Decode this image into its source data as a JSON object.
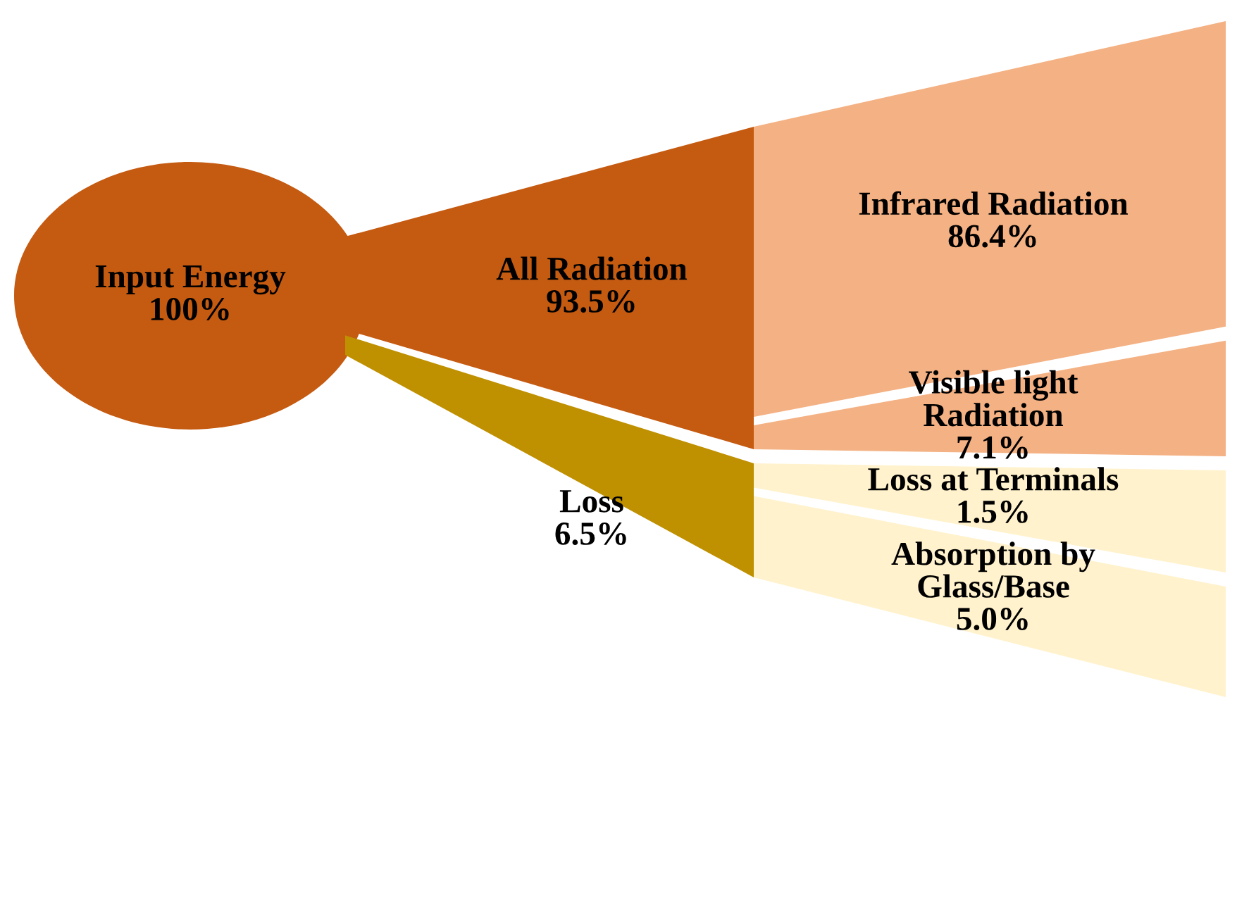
{
  "chart_data": {
    "type": "other",
    "categories": [
      "Input Energy",
      "All Radiation",
      "Loss",
      "Infrared Radiation",
      "Visible light\nRadiation",
      "Loss at Terminals",
      "Absorption by\nGlass/Base"
    ],
    "values": [
      100,
      93.5,
      6.5,
      86.4,
      7.1,
      1.5,
      5.0
    ],
    "value_labels": [
      "100%",
      "93.5%",
      "6.5%",
      "86.4%",
      "7.1%",
      "1.5%",
      "5.0%"
    ],
    "colors": [
      "#c55a11",
      "#c55a11",
      "#bf9000",
      "#f4b183",
      "#f4b183",
      "#fff2cc",
      "#fff2cc"
    ]
  }
}
